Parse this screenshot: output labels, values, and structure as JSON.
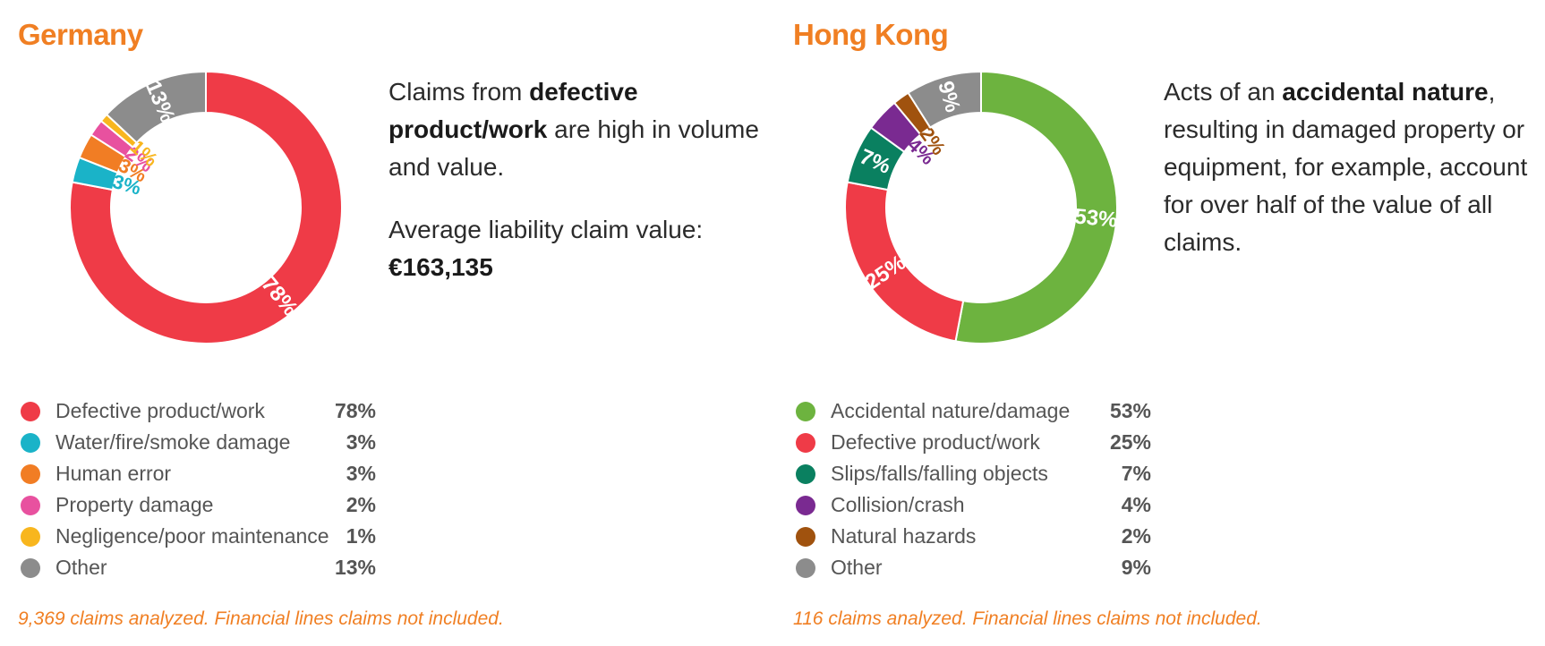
{
  "chart_data": [
    {
      "type": "pie",
      "title": "Germany",
      "description": [
        [
          {
            "text": "Claims from "
          },
          {
            "text": "defective product/work",
            "bold": true
          },
          {
            "text": " are high in volume and value."
          }
        ],
        [
          {
            "text": "Average liability claim value: "
          },
          {
            "text": "€163,135",
            "bold": true
          }
        ]
      ],
      "footnote": "9,369 claims analyzed. Financial lines claims not included.",
      "slices": [
        {
          "label": "Defective product/work",
          "value": 78,
          "display": "78%",
          "color": "#ef3b47"
        },
        {
          "label": "Water/fire/smoke damage",
          "value": 3,
          "display": "3%",
          "color": "#1ab3c8"
        },
        {
          "label": "Human error",
          "value": 3,
          "display": "3%",
          "color": "#f17d24"
        },
        {
          "label": "Property damage",
          "value": 2,
          "display": "2%",
          "color": "#e8519f"
        },
        {
          "label": "Negligence/poor maintenance",
          "value": 1,
          "display": "1%",
          "color": "#f8b61e"
        },
        {
          "label": "Other",
          "value": 13,
          "display": "13%",
          "color": "#8c8c8c"
        }
      ]
    },
    {
      "type": "pie",
      "title": "Hong Kong",
      "description": [
        [
          {
            "text": "Acts of an "
          },
          {
            "text": "accidental nature",
            "bold": true
          },
          {
            "text": ", resulting in damaged property or equipment, for example, account for over half of the value of all claims."
          }
        ]
      ],
      "footnote": "116 claims analyzed. Financial lines claims not included.",
      "slices": [
        {
          "label": "Accidental nature/damage",
          "value": 53,
          "display": "53%",
          "color": "#6db33f"
        },
        {
          "label": "Defective product/work",
          "value": 25,
          "display": "25%",
          "color": "#ef3b47"
        },
        {
          "label": "Slips/falls/falling objects",
          "value": 7,
          "display": "7%",
          "color": "#0a8060"
        },
        {
          "label": "Collision/crash",
          "value": 4,
          "display": "4%",
          "color": "#7a2a91"
        },
        {
          "label": "Natural hazards",
          "value": 2,
          "display": "2%",
          "color": "#a0520e"
        },
        {
          "label": "Other",
          "value": 9,
          "display": "9%",
          "color": "#8c8c8c"
        }
      ]
    }
  ]
}
